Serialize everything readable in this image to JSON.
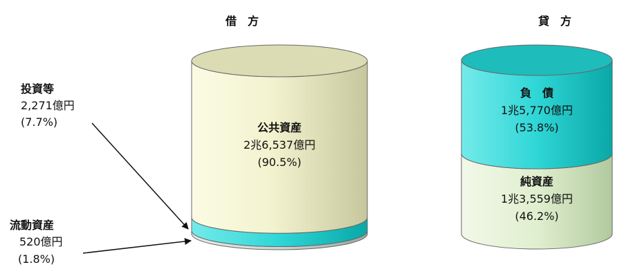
{
  "chart_data": {
    "type": "stacked-cylinder",
    "columns": [
      {
        "heading": "借　方",
        "segments": [
          {
            "name": "流動資産",
            "amount": "520億円",
            "percent": "(1.8%)",
            "share": 1.8,
            "color": "#c8d8d2"
          },
          {
            "name": "投資等",
            "amount": "2,271億円",
            "percent": "(7.7%)",
            "share": 7.7,
            "color": "#33d6d6"
          },
          {
            "name": "公共資産",
            "amount": "2兆6,537億円",
            "percent": "(90.5%)",
            "share": 90.5,
            "color": "#f2f2cf"
          }
        ]
      },
      {
        "heading": "貸　方",
        "segments": [
          {
            "name": "純資産",
            "amount": "1兆3,559億円",
            "percent": "(46.2%)",
            "share": 46.2,
            "color": "#e2efd2"
          },
          {
            "name": "負　債",
            "amount": "1兆5,770億円",
            "percent": "(53.8%)",
            "share": 53.8,
            "color": "#2fd1d1"
          }
        ]
      }
    ]
  }
}
